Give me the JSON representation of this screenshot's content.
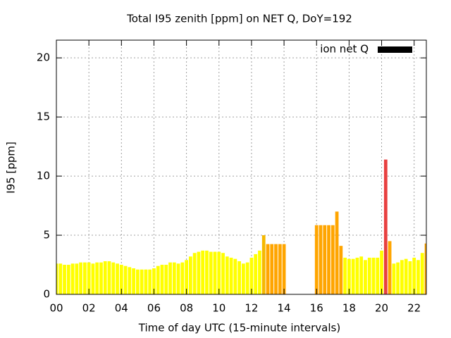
{
  "chart_data": {
    "type": "bar",
    "title": "Total I95 zenith [ppm] on NET Q, DoY=192",
    "x_label": "Time of day UTC (15-minute intervals)",
    "y_label": "I95 [ppm]",
    "x": [
      0,
      0.25,
      0.5,
      0.75,
      1,
      1.25,
      1.5,
      1.75,
      2,
      2.25,
      2.5,
      2.75,
      3,
      3.25,
      3.5,
      3.75,
      4,
      4.25,
      4.5,
      4.75,
      5,
      5.25,
      5.5,
      5.75,
      6,
      6.25,
      6.5,
      6.75,
      7,
      7.25,
      7.5,
      7.75,
      8,
      8.25,
      8.5,
      8.75,
      9,
      9.25,
      9.5,
      9.75,
      10,
      10.25,
      10.5,
      10.75,
      11,
      11.25,
      11.5,
      11.75,
      12,
      12.25,
      12.5,
      12.75,
      13,
      13.25,
      13.5,
      13.75,
      14,
      14.25,
      14.5,
      14.75,
      15,
      15.25,
      15.5,
      15.75,
      16,
      16.25,
      16.5,
      16.75,
      17,
      17.25,
      17.5,
      17.75,
      18,
      18.25,
      18.5,
      18.75,
      19,
      19.25,
      19.5,
      19.75,
      20,
      20.25,
      20.5,
      20.75,
      21,
      21.25,
      21.5,
      21.75,
      22,
      22.25,
      22.5,
      22.75
    ],
    "series": [
      {
        "name": "ion net Q",
        "color": "#000000",
        "values": [
          2.6,
          2.6,
          2.5,
          2.5,
          2.6,
          2.6,
          2.7,
          2.7,
          2.7,
          2.6,
          2.7,
          2.7,
          2.8,
          2.8,
          2.7,
          2.6,
          2.5,
          2.4,
          2.3,
          2.2,
          2.1,
          2.1,
          2.1,
          2.1,
          2.2,
          2.4,
          2.5,
          2.5,
          2.7,
          2.7,
          2.6,
          2.7,
          2.9,
          3.2,
          3.5,
          3.6,
          3.7,
          3.7,
          3.6,
          3.6,
          3.6,
          3.5,
          3.2,
          3.1,
          3.0,
          2.8,
          2.6,
          2.7,
          3.1,
          3.4,
          3.7,
          5.0,
          4.25,
          4.25,
          4.25,
          4.25,
          4.25,
          null,
          null,
          null,
          null,
          null,
          null,
          null,
          5.85,
          5.85,
          5.85,
          5.85,
          5.85,
          7.0,
          4.1,
          3.1,
          3.0,
          3.0,
          3.1,
          3.2,
          2.9,
          3.1,
          3.1,
          3.1,
          3.7,
          11.4,
          4.5,
          2.6,
          2.7,
          2.9,
          3.0,
          2.8,
          3.1,
          2.9,
          3.5,
          4.3
        ],
        "colors": [
          "#ffff00",
          "#ffff00",
          "#ffff00",
          "#ffff00",
          "#ffff00",
          "#ffff00",
          "#ffff00",
          "#ffff00",
          "#ffff00",
          "#ffff00",
          "#ffff00",
          "#ffff00",
          "#ffff00",
          "#ffff00",
          "#ffff00",
          "#ffff00",
          "#ffff00",
          "#ffff00",
          "#ffff00",
          "#ffff00",
          "#ffff00",
          "#ffff00",
          "#ffff00",
          "#ffff00",
          "#ffff00",
          "#ffff00",
          "#ffff00",
          "#ffff00",
          "#ffff00",
          "#ffff00",
          "#ffff00",
          "#ffff00",
          "#ffff00",
          "#ffff00",
          "#ffff00",
          "#ffff00",
          "#ffff00",
          "#ffff00",
          "#ffff00",
          "#ffff00",
          "#ffff00",
          "#ffff00",
          "#ffff00",
          "#ffff00",
          "#ffff00",
          "#ffff00",
          "#ffff00",
          "#ffff00",
          "#ffff00",
          "#ffff00",
          "#ffff00",
          "#f5b800",
          "#ffa500",
          "#ffa500",
          "#ffa500",
          "#ffa500",
          "#ffa500",
          "#ffa500",
          "#ffa500",
          "#ffa500",
          "#ffa500",
          "#ffa500",
          "#ffa500",
          "#ffa500",
          "#ffa500",
          "#ffa500",
          "#ffa500",
          "#ffa500",
          "#ffa500",
          "#ffa500",
          "#ffa500",
          "#ffff00",
          "#ffff00",
          "#ffff00",
          "#ffff00",
          "#ffff00",
          "#ffff00",
          "#ffff00",
          "#ffff00",
          "#ffff00",
          "#ffff00",
          "#e84040",
          "#ffa500",
          "#ffff00",
          "#ffff00",
          "#ffff00",
          "#ffff00",
          "#ffff00",
          "#ffff00",
          "#ffff00",
          "#ffff00",
          "#ffa500"
        ]
      }
    ],
    "xlim": [
      0,
      22.75
    ],
    "xticks": [
      {
        "value": 0,
        "label": "00"
      },
      {
        "value": 2,
        "label": "02"
      },
      {
        "value": 4,
        "label": "04"
      },
      {
        "value": 6,
        "label": "06"
      },
      {
        "value": 8,
        "label": "08"
      },
      {
        "value": 10,
        "label": "10"
      },
      {
        "value": 12,
        "label": "12"
      },
      {
        "value": 14,
        "label": "14"
      },
      {
        "value": 16,
        "label": "16"
      },
      {
        "value": 18,
        "label": "18"
      },
      {
        "value": 20,
        "label": "20"
      },
      {
        "value": 22,
        "label": "22"
      }
    ],
    "ylim": [
      0,
      21.5
    ],
    "yticks": [
      0,
      5,
      10,
      15,
      20
    ],
    "grid": true,
    "legend": "top-right"
  }
}
